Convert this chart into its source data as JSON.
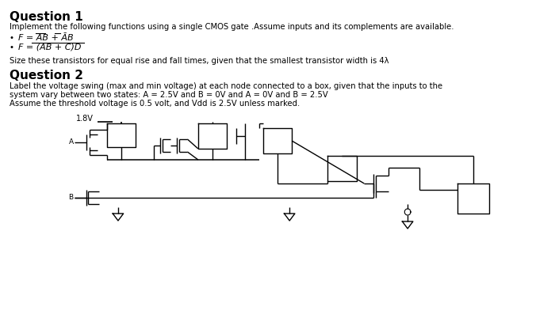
{
  "bg_color": "#ffffff",
  "text_color": "#000000",
  "q1_title": "Question 1",
  "q1_body": "Implement the following functions using a single CMOS gate .Assume inputs and its complements are available.",
  "q1_b1": "F = AB + ĀB",
  "q1_b2": "F = (AB + C)D",
  "q1_size": "Size these transistors for equal rise and fall times, given that the smallest transistor width is 4λ",
  "q2_title": "Question 2",
  "q2_body1": "Label the voltage swing (max and min voltage) at each node connected to a box, given that the inputs to the",
  "q2_body2": "system vary between two states: A = 2.5V and B = 0V and A = 0V and B = 2.5V",
  "q2_body3": "Assume the threshold voltage is 0.5 volt, and Vdd is 2.5V unless marked.",
  "lw": 1.0
}
